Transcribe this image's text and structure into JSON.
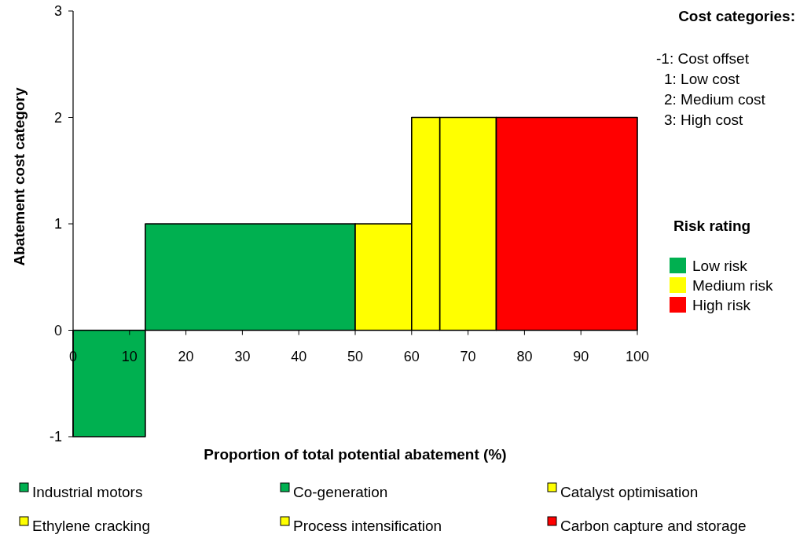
{
  "chart_data": {
    "type": "area",
    "xlabel": "Proportion of total potential abatement (%)",
    "ylabel": "Abatement cost category",
    "xlim": [
      0,
      100
    ],
    "xticks": [
      0,
      10,
      20,
      30,
      40,
      50,
      60,
      70,
      80,
      90,
      100
    ],
    "ylim": [
      -1,
      3
    ],
    "yticks": [
      -1,
      0,
      1,
      2,
      3
    ],
    "grid": false,
    "legend": "bottom",
    "series": [
      {
        "name": "Industrial motors",
        "color": "#00b050",
        "x": [
          0,
          12.8
        ],
        "values": [
          -1,
          -1
        ]
      },
      {
        "name": "Co-generation",
        "color": "#00b050",
        "x": [
          12.8,
          50
        ],
        "values": [
          1,
          1
        ]
      },
      {
        "name": "Catalyst optimisation",
        "color": "#ffff00",
        "x": [
          50,
          60
        ],
        "values": [
          1,
          1
        ]
      },
      {
        "name": "Ethylene cracking",
        "color": "#ffff00",
        "x": [
          60,
          65
        ],
        "values": [
          2,
          2
        ]
      },
      {
        "name": "Process intensification",
        "color": "#ffff00",
        "x": [
          65,
          75
        ],
        "values": [
          2,
          2
        ]
      },
      {
        "name": "Carbon capture and storage",
        "color": "#ff0000",
        "x": [
          75,
          100
        ],
        "values": [
          2,
          2
        ]
      }
    ],
    "annotations": [
      "Cost categories:",
      "-1: Cost offset",
      "1: Low cost",
      "2: Medium cost",
      "3: High cost",
      "Risk rating",
      "Low risk",
      "Medium risk",
      "High risk"
    ]
  }
}
